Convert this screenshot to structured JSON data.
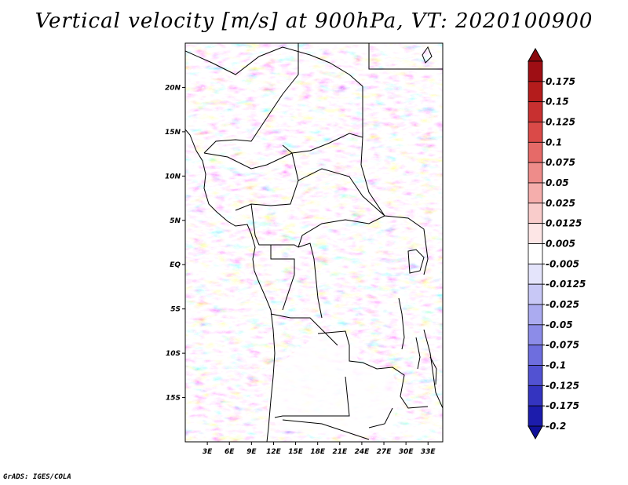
{
  "title": "Vertical velocity [m/s] at 900hPa, VT: 2020100900",
  "credit": "GrADS: IGES/COLA",
  "map": {
    "variable": "Vertical velocity",
    "units": "m/s",
    "level": "900hPa",
    "valid_time": "2020100900",
    "lon_range": [
      0,
      35
    ],
    "lat_range": [
      -20,
      25
    ],
    "lat_labels": [
      {
        "lat": 20,
        "label": "20N"
      },
      {
        "lat": 15,
        "label": "15N"
      },
      {
        "lat": 10,
        "label": "10N"
      },
      {
        "lat": 5,
        "label": "5N"
      },
      {
        "lat": 0,
        "label": "EQ"
      },
      {
        "lat": -5,
        "label": "5S"
      },
      {
        "lat": -10,
        "label": "10S"
      },
      {
        "lat": -15,
        "label": "15S"
      }
    ],
    "lon_labels": [
      {
        "lon": 3,
        "label": "3E"
      },
      {
        "lon": 6,
        "label": "6E"
      },
      {
        "lon": 9,
        "label": "9E"
      },
      {
        "lon": 12,
        "label": "12E"
      },
      {
        "lon": 15,
        "label": "15E"
      },
      {
        "lon": 18,
        "label": "18E"
      },
      {
        "lon": 21,
        "label": "21E"
      },
      {
        "lon": 24,
        "label": "24E"
      },
      {
        "lon": 27,
        "label": "27E"
      },
      {
        "lon": 30,
        "label": "30E"
      },
      {
        "lon": 33,
        "label": "33E"
      }
    ]
  },
  "colorbar": {
    "levels": [
      {
        "label": "0.175",
        "color": "#9e0e14"
      },
      {
        "label": "0.15",
        "color": "#b41c1c"
      },
      {
        "label": "0.125",
        "color": "#c83030"
      },
      {
        "label": "0.1",
        "color": "#da4a48"
      },
      {
        "label": "0.075",
        "color": "#e66a68"
      },
      {
        "label": "0.05",
        "color": "#ee8c8a"
      },
      {
        "label": "0.025",
        "color": "#f5aeac"
      },
      {
        "label": "0.0125",
        "color": "#f9cccb"
      },
      {
        "label": "0.005",
        "color": "#fde6e6"
      },
      {
        "label": "-0.005",
        "color": "#ffffff"
      },
      {
        "label": "-0.0125",
        "color": "#e4e4fb"
      },
      {
        "label": "-0.025",
        "color": "#c8c8f6"
      },
      {
        "label": "-0.05",
        "color": "#ababf0"
      },
      {
        "label": "-0.075",
        "color": "#8c8ce8"
      },
      {
        "label": "-0.1",
        "color": "#6e6ede"
      },
      {
        "label": "-0.125",
        "color": "#5252d2"
      },
      {
        "label": "-0.175",
        "color": "#3434c0"
      },
      {
        "label": "-0.2",
        "color": "#1c1cac"
      }
    ],
    "top_color": "#8a0a0e",
    "bottom_color": "#10109a"
  }
}
